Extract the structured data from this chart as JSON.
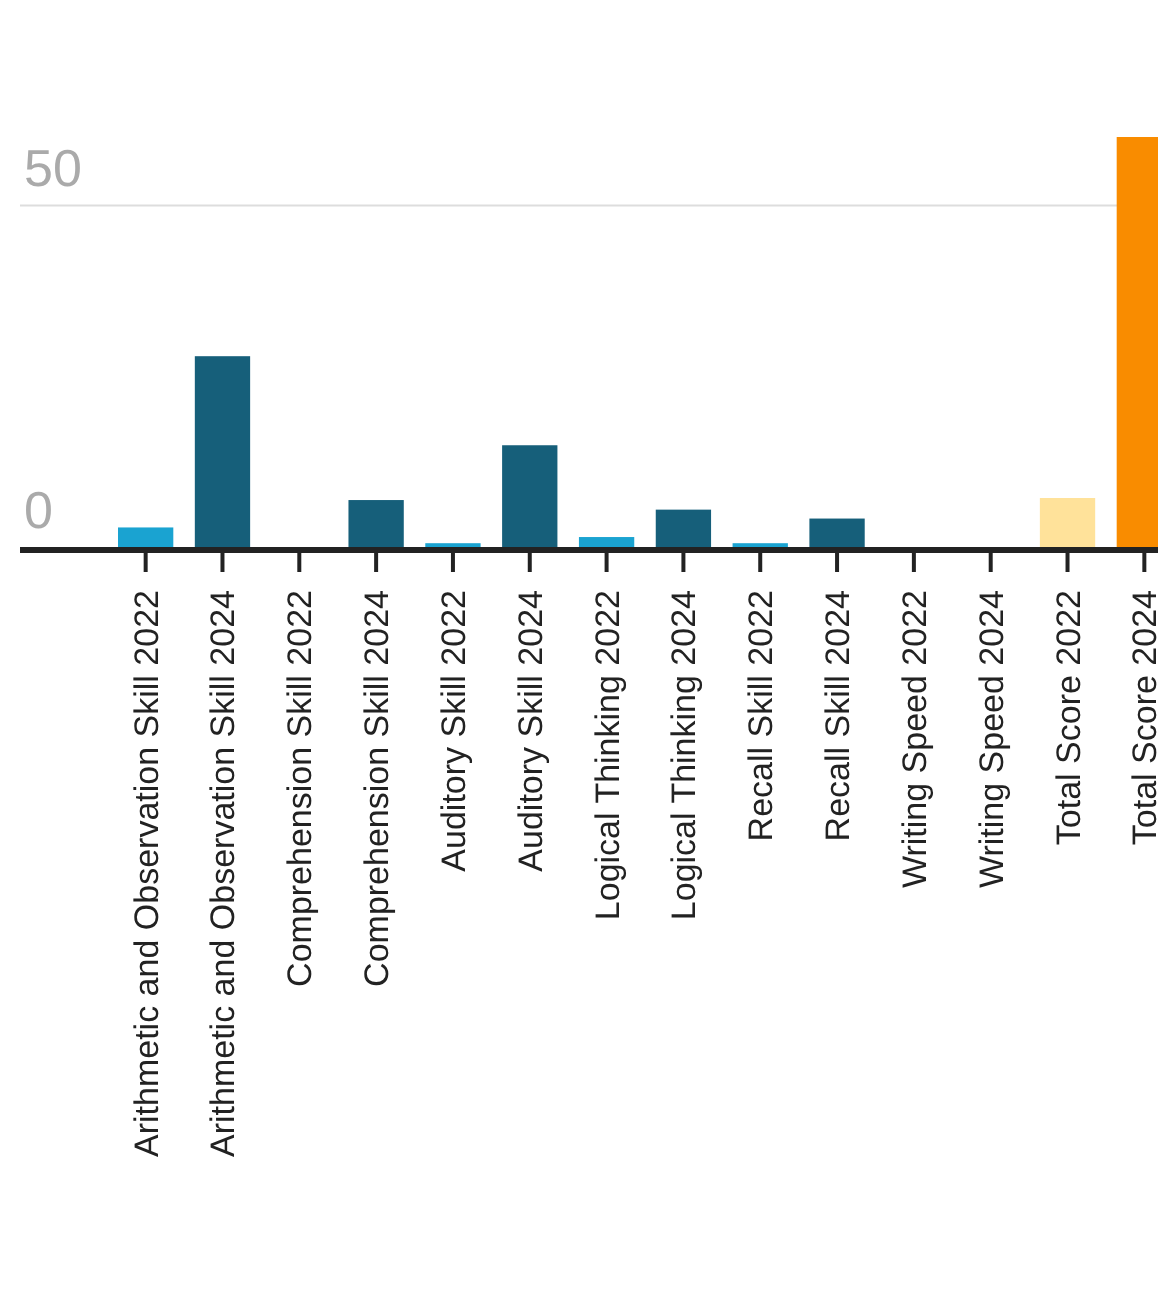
{
  "chart_data": {
    "type": "bar",
    "categories": [
      "Arithmetic and Observation Skill 2022",
      "Arithmetic and Observation Skill 2024",
      "Comprehension Skill 2022",
      "Comprehension Skill 2024",
      "Auditory Skill 2022",
      "Auditory Skill 2024",
      "Logical Thinking 2022",
      "Logical Thinking 2024",
      "Recall Skill 2022",
      "Recall Skill 2024",
      "Writing Speed 2022",
      "Writing Speed 2024",
      "Total Score 2022",
      "Total Score 2024"
    ],
    "values": [
      3,
      28,
      0,
      7,
      0.7,
      15,
      1.6,
      5.6,
      0.7,
      4.3,
      0,
      0,
      7.3,
      60
    ],
    "colors": [
      "#1aa3d1",
      "#165f7a",
      "#1aa3d1",
      "#165f7a",
      "#1aa3d1",
      "#165f7a",
      "#1aa3d1",
      "#165f7a",
      "#1aa3d1",
      "#165f7a",
      "#1aa3d1",
      "#165f7a",
      "#ffe29a",
      "#f98c00"
    ],
    "ylim": [
      0,
      60
    ],
    "yticks": [
      0,
      50
    ],
    "grid": "y"
  }
}
